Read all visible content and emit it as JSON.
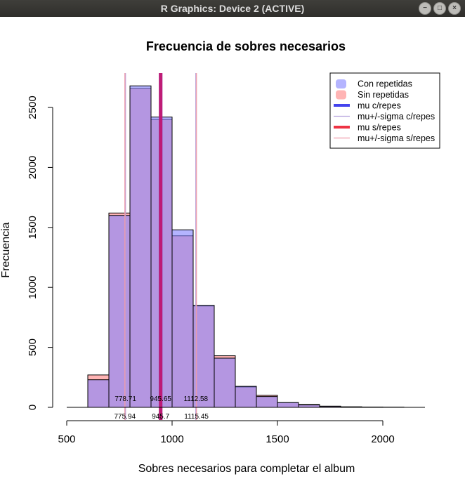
{
  "window": {
    "title": "R Graphics: Device 2 (ACTIVE)",
    "controls": {
      "minimize": "−",
      "maximize": "□",
      "close": "×"
    }
  },
  "colors": {
    "con_fill": "rgba(130,130,255,0.6)",
    "sin_fill": "rgba(255,130,130,0.6)",
    "mu_con": "#4444ee",
    "mu_sin": "#ee3344",
    "sigma_con": "#b4a0dd",
    "sigma_sin": "#ee9aaa"
  },
  "chart_data": {
    "type": "bar",
    "title": "Frecuencia de sobres necesarios",
    "xlabel": "Sobres necesarios para completar el album",
    "ylabel": "Frecuencia",
    "xlim": [
      500,
      2200
    ],
    "ylim": [
      0,
      2700
    ],
    "xticks": [
      500,
      1000,
      1500,
      2000
    ],
    "yticks": [
      0,
      500,
      1000,
      1500,
      2000,
      2500
    ],
    "bin_edges": [
      500,
      600,
      700,
      800,
      900,
      1000,
      1100,
      1200,
      1300,
      1400,
      1500,
      1600,
      1700,
      1800,
      1900,
      2000,
      2100,
      2200
    ],
    "series": [
      {
        "name": "Con repetidas",
        "values": [
          0,
          230,
          1600,
          2680,
          2420,
          1480,
          850,
          410,
          175,
          90,
          40,
          20,
          8,
          4,
          2,
          1,
          0
        ]
      },
      {
        "name": "Sin repetidas",
        "values": [
          0,
          270,
          1620,
          2660,
          2400,
          1430,
          845,
          430,
          170,
          100,
          38,
          24,
          10,
          4,
          2,
          1,
          0
        ]
      }
    ],
    "vlines": [
      {
        "series": "mu c/repes",
        "x": 945.65,
        "kind": "mu",
        "set": "con"
      },
      {
        "series": "mu s/repes",
        "x": 945.7,
        "kind": "mu",
        "set": "sin"
      },
      {
        "series": "mu+/-sigma c/repes",
        "x": 778.71,
        "kind": "sigma",
        "set": "con"
      },
      {
        "series": "mu+/-sigma c/repes",
        "x": 1112.58,
        "kind": "sigma",
        "set": "con"
      },
      {
        "series": "mu+/-sigma s/repes",
        "x": 775.94,
        "kind": "sigma",
        "set": "sin"
      },
      {
        "series": "mu+/-sigma s/repes",
        "x": 1115.45,
        "kind": "sigma",
        "set": "sin"
      }
    ],
    "annotations_row1": [
      {
        "x": 778.71,
        "label": "778.71"
      },
      {
        "x": 945.65,
        "label": "945.65"
      },
      {
        "x": 1112.58,
        "label": "1112.58"
      }
    ],
    "annotations_row2": [
      {
        "x": 775.94,
        "label": "775.94"
      },
      {
        "x": 945.7,
        "label": "945.7"
      },
      {
        "x": 1115.45,
        "label": "1115.45"
      }
    ],
    "legend": {
      "position": "top-right",
      "entries": [
        {
          "label": "Con repetidas",
          "type": "box",
          "color": "con_fill"
        },
        {
          "label": "Sin repetidas",
          "type": "box",
          "color": "sin_fill"
        },
        {
          "label": "mu c/repes",
          "type": "thick",
          "color": "mu_con"
        },
        {
          "label": "mu+/-sigma c/repes",
          "type": "thin",
          "color": "sigma_con"
        },
        {
          "label": "mu s/repes",
          "type": "thick",
          "color": "mu_sin"
        },
        {
          "label": "mu+/-sigma s/repes",
          "type": "thin",
          "color": "sigma_sin"
        }
      ]
    }
  }
}
